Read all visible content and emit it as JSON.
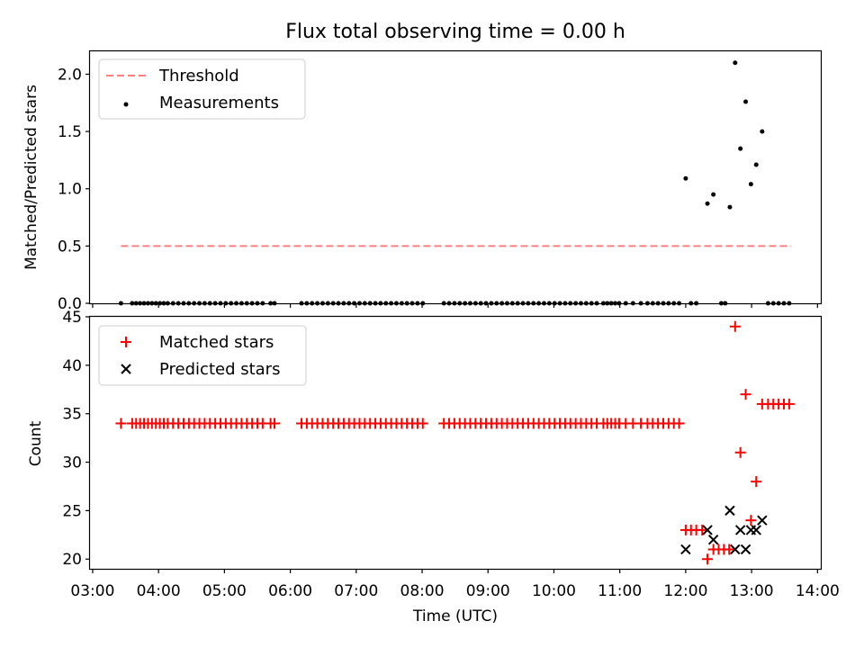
{
  "chart_data": [
    {
      "type": "scatter",
      "title": "Flux total observing time = 0.00 h",
      "ylabel": "Matched/Predicted stars",
      "xlabel": "",
      "ylim": [
        0,
        2.2
      ],
      "yticks": [
        "0.0",
        "0.5",
        "1.0",
        "1.5",
        "2.0"
      ],
      "ytick_values": [
        0,
        0.5,
        1.0,
        1.5,
        2.0
      ],
      "threshold": {
        "name": "Threshold",
        "value": 0.5,
        "x_start": 3.43,
        "x_end": 13.6,
        "color": "#ff7f7f"
      },
      "legend": [
        "Threshold",
        "Measurements"
      ],
      "legend_position": "upper-left",
      "series": [
        {
          "name": "Measurements",
          "color": "#000000",
          "marker": "dot",
          "x": [
            3.43,
            3.6,
            3.66,
            3.72,
            3.78,
            3.84,
            3.9,
            3.96,
            4.02,
            4.08,
            4.14,
            4.22,
            4.3,
            4.38,
            4.46,
            4.54,
            4.62,
            4.7,
            4.78,
            4.86,
            4.94,
            5.02,
            5.1,
            5.18,
            5.26,
            5.34,
            5.42,
            5.5,
            5.58,
            5.7,
            5.76,
            6.17,
            6.25,
            6.33,
            6.41,
            6.49,
            6.57,
            6.65,
            6.73,
            6.81,
            6.89,
            6.97,
            7.05,
            7.13,
            7.21,
            7.29,
            7.37,
            7.45,
            7.53,
            7.61,
            7.69,
            7.77,
            7.85,
            7.93,
            8.01,
            8.33,
            8.41,
            8.49,
            8.57,
            8.65,
            8.73,
            8.81,
            8.89,
            8.97,
            9.05,
            9.13,
            9.21,
            9.29,
            9.37,
            9.45,
            9.53,
            9.61,
            9.69,
            9.77,
            9.85,
            9.93,
            10.01,
            10.09,
            10.17,
            10.25,
            10.33,
            10.41,
            10.49,
            10.57,
            10.65,
            10.75,
            10.81,
            10.87,
            10.93,
            10.99,
            11.09,
            11.2,
            11.32,
            11.42,
            11.5,
            11.58,
            11.66,
            11.74,
            11.82,
            11.9,
            12.0,
            12.08,
            12.16,
            12.33,
            12.42,
            12.54,
            12.6,
            12.67,
            12.75,
            12.83,
            12.91,
            12.99,
            13.07,
            13.16,
            13.25,
            13.33,
            13.41,
            13.49,
            13.57
          ],
          "y": [
            0,
            0,
            0,
            0,
            0,
            0,
            0,
            0,
            0,
            0,
            0,
            0,
            0,
            0,
            0,
            0,
            0,
            0,
            0,
            0,
            0,
            0,
            0,
            0,
            0,
            0,
            0,
            0,
            0,
            0,
            0,
            0,
            0,
            0,
            0,
            0,
            0,
            0,
            0,
            0,
            0,
            0,
            0,
            0,
            0,
            0,
            0,
            0,
            0,
            0,
            0,
            0,
            0,
            0,
            0,
            0,
            0,
            0,
            0,
            0,
            0,
            0,
            0,
            0,
            0,
            0,
            0,
            0,
            0,
            0,
            0,
            0,
            0,
            0,
            0,
            0,
            0,
            0,
            0,
            0,
            0,
            0,
            0,
            0,
            0,
            0,
            0,
            0,
            0,
            0,
            0,
            0,
            0,
            0,
            0,
            0,
            0,
            0,
            0,
            0,
            1.09,
            0,
            0,
            0.87,
            0.95,
            0,
            0,
            0.84,
            2.1,
            1.35,
            1.76,
            1.04,
            1.21,
            1.5,
            0,
            0,
            0,
            0,
            0
          ]
        }
      ]
    },
    {
      "type": "scatter",
      "title": "",
      "ylabel": "Count",
      "xlabel": "Time (UTC)",
      "xlim": [
        2.96,
        14.05
      ],
      "ylim": [
        19,
        45
      ],
      "yticks": [
        "20",
        "25",
        "30",
        "35",
        "40",
        "45"
      ],
      "ytick_values": [
        20,
        25,
        30,
        35,
        40,
        45
      ],
      "xticks": [
        "03:00",
        "04:00",
        "05:00",
        "06:00",
        "07:00",
        "08:00",
        "09:00",
        "10:00",
        "11:00",
        "12:00",
        "13:00",
        "14:00"
      ],
      "xtick_values": [
        3,
        4,
        5,
        6,
        7,
        8,
        9,
        10,
        11,
        12,
        13,
        14
      ],
      "legend": [
        "Matched stars",
        "Predicted stars"
      ],
      "legend_position": "upper-left",
      "series": [
        {
          "name": "Matched stars",
          "color": "#ff0000",
          "marker": "plus",
          "x": [
            3.43,
            3.6,
            3.66,
            3.72,
            3.78,
            3.84,
            3.9,
            3.96,
            4.02,
            4.08,
            4.14,
            4.22,
            4.3,
            4.38,
            4.46,
            4.54,
            4.62,
            4.7,
            4.78,
            4.86,
            4.94,
            5.02,
            5.1,
            5.18,
            5.26,
            5.34,
            5.42,
            5.5,
            5.58,
            5.7,
            5.76,
            6.17,
            6.25,
            6.33,
            6.41,
            6.49,
            6.57,
            6.65,
            6.73,
            6.81,
            6.89,
            6.97,
            7.05,
            7.13,
            7.21,
            7.29,
            7.37,
            7.45,
            7.53,
            7.61,
            7.69,
            7.77,
            7.85,
            7.93,
            8.01,
            8.33,
            8.41,
            8.49,
            8.57,
            8.65,
            8.73,
            8.81,
            8.89,
            8.97,
            9.05,
            9.13,
            9.21,
            9.29,
            9.37,
            9.45,
            9.53,
            9.61,
            9.69,
            9.77,
            9.85,
            9.93,
            10.01,
            10.09,
            10.17,
            10.25,
            10.33,
            10.41,
            10.49,
            10.57,
            10.65,
            10.75,
            10.81,
            10.87,
            10.93,
            10.99,
            11.09,
            11.2,
            11.32,
            11.42,
            11.5,
            11.58,
            11.66,
            11.74,
            11.82,
            11.9,
            12.0,
            12.08,
            12.16,
            12.25,
            12.33,
            12.42,
            12.5,
            12.58,
            12.66,
            12.75,
            12.83,
            12.91,
            12.99,
            13.07,
            13.16,
            13.25,
            13.33,
            13.41,
            13.49,
            13.57
          ],
          "y": [
            34,
            34,
            34,
            34,
            34,
            34,
            34,
            34,
            34,
            34,
            34,
            34,
            34,
            34,
            34,
            34,
            34,
            34,
            34,
            34,
            34,
            34,
            34,
            34,
            34,
            34,
            34,
            34,
            34,
            34,
            34,
            34,
            34,
            34,
            34,
            34,
            34,
            34,
            34,
            34,
            34,
            34,
            34,
            34,
            34,
            34,
            34,
            34,
            34,
            34,
            34,
            34,
            34,
            34,
            34,
            34,
            34,
            34,
            34,
            34,
            34,
            34,
            34,
            34,
            34,
            34,
            34,
            34,
            34,
            34,
            34,
            34,
            34,
            34,
            34,
            34,
            34,
            34,
            34,
            34,
            34,
            34,
            34,
            34,
            34,
            34,
            34,
            34,
            34,
            34,
            34,
            34,
            34,
            34,
            34,
            34,
            34,
            34,
            34,
            34,
            23,
            23,
            23,
            23,
            20,
            21,
            21,
            21,
            21,
            44,
            31,
            37,
            24,
            28,
            36,
            36,
            36,
            36,
            36,
            36
          ]
        },
        {
          "name": "Predicted stars",
          "color": "#000000",
          "marker": "x",
          "x": [
            12.0,
            12.33,
            12.42,
            12.67,
            12.75,
            12.83,
            12.91,
            12.99,
            13.07,
            13.16
          ],
          "y": [
            21,
            23,
            22,
            25,
            21,
            23,
            21,
            23,
            23,
            24
          ]
        }
      ]
    }
  ]
}
